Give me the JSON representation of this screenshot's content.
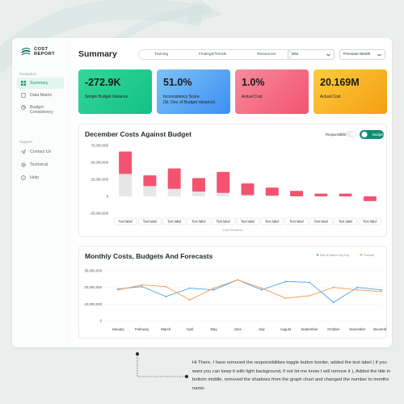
{
  "app": {
    "logo_line1": "COST",
    "logo_line2": "REPORT"
  },
  "sidebar": {
    "nav_section": "Navigation",
    "support_section": "Support",
    "items": [
      {
        "label": "Summary",
        "icon": "grid-icon",
        "active": true
      },
      {
        "label": "Data Matrix",
        "icon": "document-icon"
      },
      {
        "label": "Budget Consistency",
        "icon": "pie-chart-icon"
      }
    ],
    "support_items": [
      {
        "label": "Contact Us",
        "icon": "send-icon"
      },
      {
        "label": "Technical",
        "icon": "gear-icon"
      },
      {
        "label": "Help",
        "icon": "help-icon"
      }
    ]
  },
  "header": {
    "title": "Summary",
    "tabs": [
      "Training",
      "Findings/Trends",
      "Resources"
    ],
    "site_select": "Site",
    "month_select": "Previous Month"
  },
  "kpis": [
    {
      "value": "-272.9K",
      "label": "Simple Budget Variance",
      "color": "#22cc8e"
    },
    {
      "value": "51.0%",
      "label": "Inconsistency Score\n(St. Dev. of Budget Variance)",
      "color": "#4aa3f5"
    },
    {
      "value": "1.0%",
      "label": "Actual Cost",
      "color": "#f65a78"
    },
    {
      "value": "20.169M",
      "label": "Actual Cost",
      "color": "#f7ad16"
    }
  ],
  "december_chart": {
    "title": "December Costs Against Budget",
    "toggle_left": "Responsibilities",
    "toggle_right": "Budget",
    "xlabel": "Cost Elements"
  },
  "monthly_chart": {
    "title": "Monthly Costs, Budgets And Forecasts",
    "legend": [
      "Sum of Value in Mg Turq",
      "Forecast"
    ]
  },
  "chart_data": [
    {
      "type": "bar",
      "title": "December Costs Against Budget",
      "xlabel": "Cost Elements",
      "ylabel": "",
      "ylim": [
        -25000000,
        75000000
      ],
      "yticks": [
        "75,000,000",
        "50,000,000",
        "25,000,000",
        "0",
        "-25,000,000"
      ],
      "ytick_values": [
        75000000,
        50000000,
        25000000,
        0,
        -25000000
      ],
      "categories": [
        "Text label",
        "Text label",
        "Text label",
        "Text label",
        "Text label",
        "Text label",
        "Text label",
        "Text label",
        "Text label",
        "Text label",
        "Text label"
      ],
      "series": [
        {
          "values": [
            33000000,
            15000000,
            11000000,
            7000000,
            5000000,
            2000000,
            1000000,
            0,
            0,
            0,
            0
          ]
        },
        {
          "values": [
            33000000,
            16000000,
            30000000,
            20000000,
            31000000,
            17000000,
            12000000,
            8000000,
            4000000,
            4000000,
            -7000000
          ]
        }
      ],
      "colors": {
        "gray": "#e5e7e7",
        "red": "#f45370",
        "green": "#19c289"
      }
    },
    {
      "type": "line",
      "title": "Monthly Costs, Budgets And Forecasts",
      "ylim": [
        0,
        30000000
      ],
      "yticks": [
        "30,000,000",
        "20,000,000",
        "10,000,000",
        "0"
      ],
      "ytick_values": [
        30000000,
        20000000,
        10000000,
        0
      ],
      "categories": [
        "January",
        "February",
        "March",
        "April",
        "May",
        "June",
        "July",
        "August",
        "September",
        "October",
        "November",
        "December"
      ],
      "series": [
        {
          "name": "Sum of Value in Mg Turq",
          "color": "#4ba3f0",
          "values": [
            19000000,
            20500000,
            14500000,
            19500000,
            18500000,
            24500000,
            18500000,
            23500000,
            23000000,
            11000000,
            20000000,
            18500000
          ]
        },
        {
          "name": "Forecast",
          "color": "#f59a4b",
          "values": [
            18500000,
            21500000,
            20500000,
            12500000,
            19500000,
            24500000,
            19500000,
            13500000,
            15000000,
            20000000,
            18500000,
            17500000
          ]
        }
      ]
    }
  ],
  "note": {
    "text": "Hi There, I have removed the responsibilities toggle button border, added the text label ( if you want you can keep it with light background, if not let me know I will remove it ), Added the title in bottom middle, removed the shadows from the graph chart and changed the number to months name."
  }
}
